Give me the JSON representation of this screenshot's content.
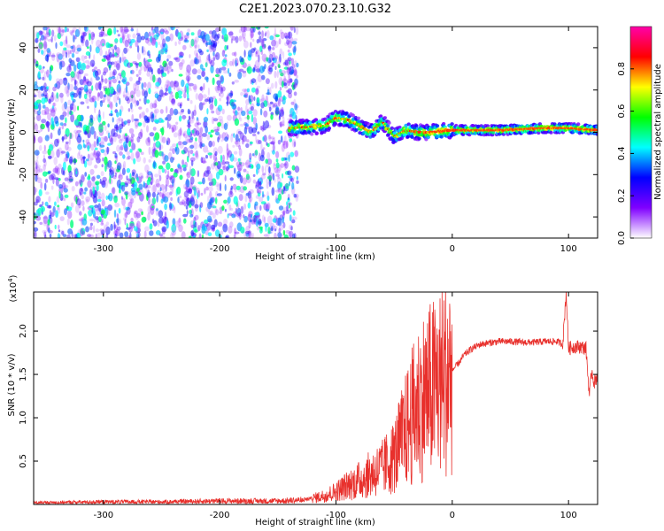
{
  "title": "C2E1.2023.070.23.10.G32",
  "colors": {
    "scatter_purple": "#7a1cf0",
    "snr_line": "#e8302c",
    "axis": "#000000"
  },
  "chart_data": [
    {
      "type": "heatmap",
      "xlabel": "Height of straight line (km)",
      "ylabel": "Frequency (Hz)",
      "xlim": [
        -360,
        125
      ],
      "ylim": [
        -50,
        50
      ],
      "xticks": [
        -300,
        -200,
        -100,
        0,
        100
      ],
      "xtick_labels": [
        "-300",
        "-200",
        "-100",
        "0",
        "100"
      ],
      "yticks": [
        -40,
        -20,
        0,
        20,
        40
      ],
      "ytick_labels": [
        "-40",
        "-20",
        "0",
        "20",
        "40"
      ],
      "colorbar": {
        "label": "Normalized spectral amplitude",
        "range": [
          0,
          1
        ],
        "ticks": [
          0.0,
          0.2,
          0.4,
          0.6,
          0.8
        ],
        "tick_labels": [
          "0.0",
          "0.2",
          "0.4",
          "0.6",
          "0.8"
        ],
        "colormap": [
          "#ffffff",
          "#8000ff",
          "#0000ff",
          "#00ffff",
          "#00ff00",
          "#ffff00",
          "#ff0000",
          "#ff00aa"
        ]
      },
      "regions": [
        {
          "kind": "noise",
          "x_range": [
            -360,
            -133
          ],
          "y_range": [
            -50,
            50
          ],
          "amplitude": 0.25
        },
        {
          "kind": "signal_ridge",
          "x_range": [
            -140,
            125
          ],
          "center_freq": [
            [
              -140,
              2
            ],
            [
              -110,
              3
            ],
            [
              -100,
              7
            ],
            [
              -90,
              6
            ],
            [
              -80,
              3
            ],
            [
              -70,
              0
            ],
            [
              -60,
              5
            ],
            [
              -50,
              -2
            ],
            [
              -40,
              1
            ],
            [
              -30,
              0
            ],
            [
              -20,
              0
            ],
            [
              0,
              1
            ],
            [
              40,
              1
            ],
            [
              80,
              2
            ],
            [
              100,
              2
            ],
            [
              125,
              1
            ]
          ],
          "amplitude": 0.9
        }
      ]
    },
    {
      "type": "line",
      "xlabel": "Height of straight line (km)",
      "ylabel": "SNR (10 * v/v)",
      "y_scale_label": "(x10",
      "y_scale_exp": "4",
      "y_scale_close": ")",
      "xlim": [
        -360,
        125
      ],
      "ylim": [
        0,
        2.45
      ],
      "xticks": [
        -300,
        -200,
        -100,
        0,
        100
      ],
      "xtick_labels": [
        "-300",
        "-200",
        "-100",
        "0",
        "100"
      ],
      "yticks": [
        0.5,
        1.0,
        1.5,
        2.0
      ],
      "ytick_labels": [
        "0.5",
        "1.0",
        "1.5",
        "2.0"
      ],
      "series": [
        {
          "x": [
            -360,
            -300,
            -250,
            -200,
            -150,
            -130,
            -120,
            -110,
            -100,
            -90,
            -80,
            -70,
            -60,
            -50,
            -45,
            -40,
            -35,
            -30,
            -25,
            -20,
            -15,
            -10,
            -5,
            0,
            5,
            10,
            15,
            20,
            25,
            30,
            40,
            50,
            60,
            70,
            80,
            90,
            95,
            98,
            100,
            105,
            110,
            115,
            118,
            120,
            122,
            125
          ],
          "values": [
            0.02,
            0.03,
            0.03,
            0.04,
            0.04,
            0.05,
            0.07,
            0.1,
            0.15,
            0.22,
            0.28,
            0.35,
            0.42,
            0.55,
            0.7,
            0.85,
            1.0,
            1.15,
            1.25,
            1.3,
            1.35,
            1.42,
            1.5,
            1.55,
            1.62,
            1.72,
            1.78,
            1.82,
            1.85,
            1.86,
            1.88,
            1.88,
            1.87,
            1.87,
            1.88,
            1.88,
            1.85,
            2.45,
            1.8,
            1.82,
            1.82,
            1.8,
            1.25,
            1.55,
            1.4,
            1.5
          ]
        }
      ]
    }
  ]
}
